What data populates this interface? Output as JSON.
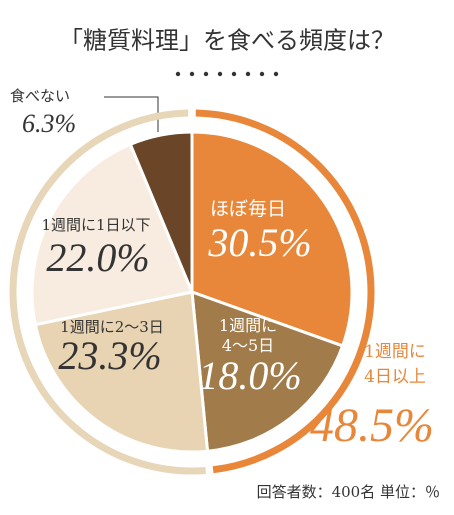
{
  "title": "「糖質料理」を食べる頻度は？",
  "footnote": "回答者数：400名 単位：％",
  "chart_data": {
    "type": "pie",
    "categories": [
      "ほぼ毎日",
      "1週間に\n4〜5日",
      "1週間に2〜3日",
      "1週間に1日以下",
      "食べない"
    ],
    "values": [
      30.5,
      18.0,
      23.3,
      22.0,
      6.3
    ],
    "value_labels": [
      "30.5%",
      "18.0%",
      "23.3%",
      "22.0%",
      "6.3%"
    ],
    "colors": [
      "#e8873a",
      "#a17b49",
      "#e8d4b2",
      "#f8ece1",
      "#6b4527"
    ],
    "groups": [
      {
        "label": "1週間に\n4日以上",
        "value": 48.5,
        "value_label": "48.5%",
        "color": "#e8873a"
      }
    ],
    "ring_rest_color": "#e7d6b8"
  }
}
